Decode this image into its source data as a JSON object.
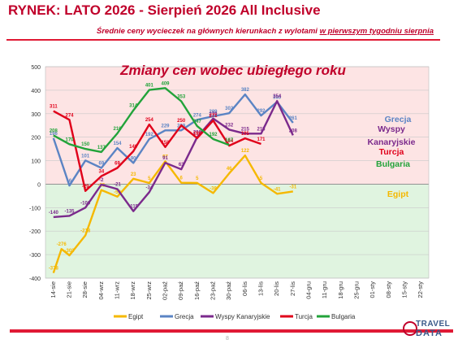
{
  "header": {
    "title": "RYNEK: LATO 2026 - Sierpień 2026 All Inclusive",
    "subtitle_prefix": "Średnie ceny wycieczek na głównych kierunkach z wylotami ",
    "subtitle_underlined": "w pierwszym tygodniu sierpnia"
  },
  "footer": {
    "page_number": "8",
    "logo_line1": "TRAVEL",
    "logo_line2": "DATA"
  },
  "colors": {
    "positive_zone": "#fde4e4",
    "negative_zone": "#e0f4e0",
    "title_red": "#c0002a"
  },
  "chart_data": {
    "type": "line",
    "title": "Zmiany cen wobec ubiegłego roku",
    "ylim": [
      -400,
      500
    ],
    "yticks": [
      -400,
      -300,
      -200,
      -100,
      0,
      100,
      200,
      300,
      400,
      500
    ],
    "grid": true,
    "legend_position": "bottom",
    "x": [
      "14-sie",
      "21-sie",
      "28-sie",
      "04-wrz",
      "11-wrz",
      "18-wrz",
      "25-wrz",
      "02-paź",
      "09-paź",
      "16-paź",
      "23-paź",
      "30-paź",
      "06-lis",
      "13-lis",
      "20-lis",
      "27-lis",
      "04-gru",
      "11-gru",
      "18-gru",
      "25-gru",
      "01-sty",
      "08-sty",
      "15-sty",
      "22-sty"
    ],
    "series": [
      {
        "name": "Egipt",
        "color": "#f5b800",
        "label_values": [
          -378,
          -276,
          -303,
          -218,
          -25,
          -53,
          23,
          5,
          97,
          6,
          5,
          -38,
          46,
          122,
          5,
          -41,
          -31
        ],
        "points": [
          [
            0,
            -378
          ],
          [
            0.5,
            -276
          ],
          [
            1,
            -303
          ],
          [
            2,
            -218
          ],
          [
            3,
            -25
          ],
          [
            4,
            -53
          ],
          [
            5,
            23
          ],
          [
            6,
            5
          ],
          [
            7,
            97
          ],
          [
            8,
            6
          ],
          [
            9,
            5
          ],
          [
            10,
            -38
          ],
          [
            11,
            46
          ],
          [
            12,
            122
          ],
          [
            13,
            5
          ],
          [
            14,
            -41
          ],
          [
            15,
            -31
          ]
        ]
      },
      {
        "name": "Grecja",
        "color": "#5b84c4",
        "label_values": [
          196,
          -6,
          101,
          69,
          154,
          90,
          192,
          229,
          229,
          274,
          289,
          302,
          382,
          292,
          350,
          261
        ],
        "points": [
          [
            0,
            196
          ],
          [
            1,
            -6
          ],
          [
            2,
            101
          ],
          [
            3,
            69
          ],
          [
            4,
            154
          ],
          [
            5,
            90
          ],
          [
            6,
            192
          ],
          [
            7,
            229
          ],
          [
            8,
            229
          ],
          [
            9,
            274
          ],
          [
            10,
            289
          ],
          [
            11,
            302
          ],
          [
            12,
            382
          ],
          [
            13,
            292
          ],
          [
            14,
            350
          ],
          [
            15,
            261
          ]
        ]
      },
      {
        "name": "Wyspy Kanaryjskie",
        "color": "#7b2a8c",
        "label_values": [
          -140,
          -135,
          -100,
          -2,
          -21,
          -115,
          -34,
          91,
          63,
          200,
          279,
          232,
          215,
          215,
          354,
          208
        ],
        "points": [
          [
            0,
            -140
          ],
          [
            1,
            -135
          ],
          [
            2,
            -100
          ],
          [
            3,
            -2
          ],
          [
            4,
            -21
          ],
          [
            5,
            -115
          ],
          [
            6,
            -34
          ],
          [
            7,
            91
          ],
          [
            8,
            63
          ],
          [
            9,
            200
          ],
          [
            10,
            279
          ],
          [
            11,
            232
          ],
          [
            12,
            215
          ],
          [
            13,
            215
          ],
          [
            14,
            354
          ],
          [
            15,
            208
          ]
        ]
      },
      {
        "name": "Turcja",
        "color": "#e0001a",
        "label_values": [
          311,
          274,
          -29,
          34,
          69,
          140,
          254,
          158,
          250,
          196,
          271,
          164,
          195,
          171
        ],
        "points": [
          [
            0,
            311
          ],
          [
            1,
            274
          ],
          [
            2,
            -29
          ],
          [
            3,
            34
          ],
          [
            4,
            69
          ],
          [
            5,
            140
          ],
          [
            6,
            254
          ],
          [
            7,
            158
          ],
          [
            8,
            250
          ],
          [
            9,
            196
          ],
          [
            10,
            271
          ],
          [
            11,
            164
          ],
          [
            12,
            195
          ],
          [
            13,
            171
          ]
        ]
      },
      {
        "name": "Bulgaria",
        "color": "#22a33a",
        "label_values": [
          208,
          170,
          150,
          137,
          216,
          314,
          401,
          409,
          353,
          247,
          192,
          167
        ],
        "points": [
          [
            0,
            208
          ],
          [
            1,
            170
          ],
          [
            2,
            150
          ],
          [
            3,
            137
          ],
          [
            4,
            216
          ],
          [
            5,
            314
          ],
          [
            6,
            401
          ],
          [
            7,
            409
          ],
          [
            8,
            353
          ],
          [
            9,
            247
          ],
          [
            10,
            192
          ],
          [
            11,
            167
          ]
        ]
      }
    ],
    "right_labels": [
      "Grecja",
      "Wyspy",
      "Kanaryjskie",
      "Turcja",
      "Bulgaria",
      "Egipt"
    ]
  }
}
